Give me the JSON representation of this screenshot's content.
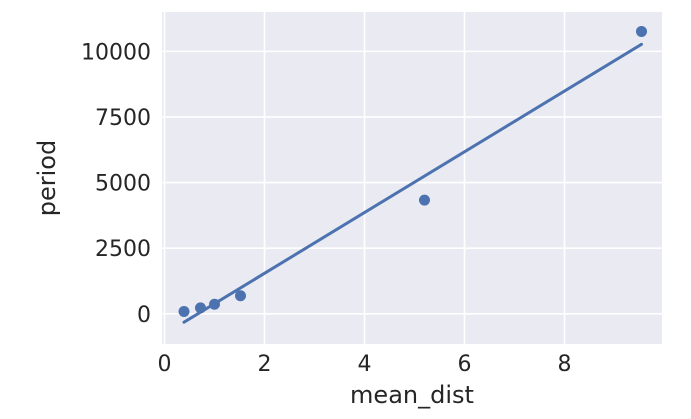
{
  "chart_data": {
    "type": "scatter",
    "xlabel": "mean_dist",
    "ylabel": "period",
    "xlim": [
      -0.05,
      9.95
    ],
    "ylim": [
      -1150,
      11500
    ],
    "x_ticks": [
      0,
      2,
      4,
      6,
      8
    ],
    "y_ticks": [
      0,
      2500,
      5000,
      7500,
      10000
    ],
    "x_tick_labels": [
      "0",
      "2",
      "4",
      "6",
      "8"
    ],
    "y_tick_labels": [
      "0",
      "2500",
      "5000",
      "7500",
      "10000"
    ],
    "grid": true,
    "points": [
      {
        "x": 0.39,
        "y": 88
      },
      {
        "x": 0.72,
        "y": 225
      },
      {
        "x": 1.0,
        "y": 365
      },
      {
        "x": 1.52,
        "y": 687
      },
      {
        "x": 5.2,
        "y": 4333
      },
      {
        "x": 9.54,
        "y": 10759
      }
    ],
    "regression_line": {
      "x": [
        0.39,
        9.54
      ],
      "y": [
        -320,
        10270
      ]
    },
    "colors": {
      "background": "#eaeaf2",
      "grid": "#ffffff",
      "series": "#4c72b0",
      "text": "#262626"
    }
  }
}
